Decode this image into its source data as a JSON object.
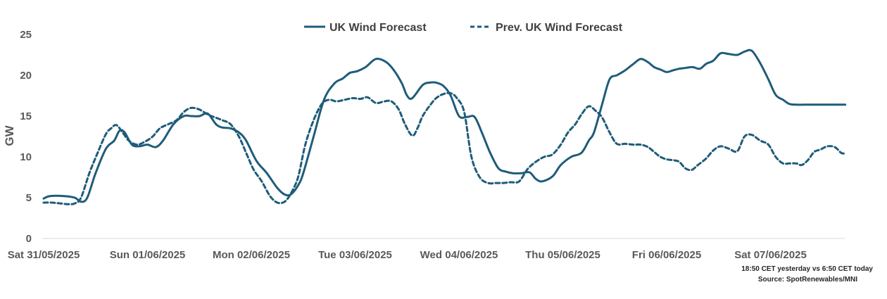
{
  "chart_data": {
    "type": "line",
    "title": "",
    "xlabel": "",
    "ylabel": "GW",
    "ylim": [
      0,
      25
    ],
    "yticks": [
      0,
      5,
      10,
      15,
      20,
      25
    ],
    "xlim": [
      0,
      7.75
    ],
    "x_ticks": [
      0,
      1,
      2,
      3,
      4,
      5,
      6,
      7
    ],
    "x_tick_labels": [
      "Sat 31/05/2025",
      "Sun 01/06/2025",
      "Mon 02/06/2025",
      "Tue 03/06/2025",
      "Wed 04/06/2025",
      "Thu 05/06/2025",
      "Fri 06/06/2025",
      "Sat 07/06/2025"
    ],
    "grid": false,
    "legend_position": "top-center",
    "series": [
      {
        "name": "UK Wind Forecast",
        "style": "solid",
        "color": "#1f5c7a",
        "x": [
          0,
          0.06,
          0.2,
          0.3,
          0.36,
          0.42,
          0.5,
          0.6,
          0.68,
          0.73,
          0.78,
          0.85,
          0.92,
          1.0,
          1.08,
          1.15,
          1.25,
          1.35,
          1.42,
          1.5,
          1.58,
          1.66,
          1.72,
          1.8,
          1.88,
          1.95,
          2.05,
          2.15,
          2.25,
          2.32,
          2.38,
          2.45,
          2.5,
          2.6,
          2.7,
          2.8,
          2.88,
          2.95,
          3.02,
          3.1,
          3.2,
          3.3,
          3.38,
          3.45,
          3.5,
          3.55,
          3.65,
          3.72,
          3.78,
          3.85,
          3.92,
          4.0,
          4.08,
          4.15,
          4.22,
          4.3,
          4.38,
          4.45,
          4.52,
          4.6,
          4.68,
          4.74,
          4.8,
          4.9,
          4.98,
          5.08,
          5.18,
          5.25,
          5.3,
          5.38,
          5.45,
          5.52,
          5.6,
          5.68,
          5.75,
          5.82,
          5.88,
          5.94,
          6.0,
          6.06,
          6.12,
          6.18,
          6.25,
          6.32,
          6.38,
          6.45,
          6.52,
          6.6,
          6.68,
          6.75,
          6.82,
          6.9,
          6.98,
          7.05,
          7.12,
          7.18,
          7.25,
          7.32,
          7.38,
          7.45,
          7.52,
          7.58,
          7.65,
          7.72
        ],
        "y": [
          4.9,
          5.2,
          5.2,
          5.0,
          4.5,
          5.0,
          8.0,
          11.0,
          12.0,
          13.2,
          13.0,
          11.5,
          11.3,
          11.5,
          11.2,
          12.0,
          14.0,
          15.0,
          15.0,
          15.0,
          15.3,
          14.0,
          13.6,
          13.5,
          13.0,
          12.0,
          9.5,
          8.0,
          6.2,
          5.4,
          5.4,
          6.5,
          8.0,
          12.5,
          17.0,
          19.0,
          19.6,
          20.3,
          20.5,
          21.0,
          22.0,
          21.6,
          20.5,
          19.0,
          17.5,
          17.2,
          18.8,
          19.1,
          19.1,
          18.7,
          17.5,
          15.0,
          14.9,
          14.9,
          13.0,
          10.5,
          8.6,
          8.2,
          8.0,
          8.0,
          8.1,
          7.3,
          7.0,
          7.6,
          9.0,
          10.0,
          10.5,
          12.0,
          13.0,
          16.5,
          19.5,
          20.0,
          20.6,
          21.4,
          22.0,
          21.6,
          21.0,
          20.7,
          20.4,
          20.6,
          20.8,
          20.9,
          21.0,
          20.8,
          21.4,
          21.8,
          22.7,
          22.6,
          22.5,
          22.9,
          23.0,
          21.5,
          19.5,
          17.6,
          17.0,
          16.5,
          16.4,
          16.4,
          16.4,
          16.4,
          16.4,
          16.4,
          16.4,
          16.4
        ],
        "x_end": 7.72
      },
      {
        "name": "Prev. UK Wind Forecast",
        "style": "dashed",
        "color": "#1f5c7a",
        "x": [
          0,
          0.08,
          0.16,
          0.24,
          0.3,
          0.36,
          0.44,
          0.52,
          0.6,
          0.65,
          0.7,
          0.76,
          0.82,
          0.9,
          0.98,
          1.05,
          1.12,
          1.2,
          1.28,
          1.35,
          1.42,
          1.5,
          1.58,
          1.66,
          1.72,
          1.8,
          1.88,
          1.95,
          2.02,
          2.1,
          2.18,
          2.25,
          2.32,
          2.38,
          2.45,
          2.52,
          2.6,
          2.68,
          2.75,
          2.82,
          2.9,
          2.98,
          3.05,
          3.12,
          3.2,
          3.28,
          3.35,
          3.42,
          3.48,
          3.55,
          3.6,
          3.65,
          3.72,
          3.78,
          3.85,
          3.92,
          3.98,
          4.05,
          4.12,
          4.2,
          4.28,
          4.36,
          4.42,
          4.5,
          4.58,
          4.66,
          4.74,
          4.82,
          4.9,
          4.98,
          5.05,
          5.12,
          5.18,
          5.25,
          5.32,
          5.38,
          5.45,
          5.52,
          5.6,
          5.68,
          5.75,
          5.82,
          5.88,
          5.94,
          6.0,
          6.06,
          6.12,
          6.18,
          6.24,
          6.3,
          6.38,
          6.45,
          6.52,
          6.6,
          6.68,
          6.75,
          6.82,
          6.9,
          6.98,
          7.05,
          7.12,
          7.18,
          7.25,
          7.3
        ],
        "y": [
          4.4,
          4.4,
          4.3,
          4.2,
          4.3,
          5.0,
          8.0,
          10.5,
          12.8,
          13.5,
          13.9,
          13.0,
          12.0,
          11.5,
          11.9,
          12.5,
          13.5,
          14.0,
          14.5,
          15.5,
          16.0,
          15.8,
          15.2,
          14.8,
          14.5,
          14.0,
          12.5,
          10.5,
          8.5,
          7.0,
          5.2,
          4.4,
          4.5,
          5.5,
          7.5,
          11.5,
          14.5,
          16.5,
          17.0,
          16.8,
          17.0,
          17.2,
          17.1,
          17.3,
          16.6,
          16.8,
          16.8,
          15.8,
          14.0,
          12.6,
          13.5,
          15.0,
          16.3,
          17.2,
          17.7,
          17.8,
          17.2,
          15.5,
          10.0,
          7.5,
          6.8,
          6.8,
          6.8,
          6.9,
          7.0,
          8.5,
          9.4,
          10.0,
          10.3,
          11.5,
          13.0,
          14.0,
          15.2,
          16.2,
          15.6,
          14.8,
          13.0,
          11.6,
          11.6,
          11.5,
          11.5,
          11.2,
          10.6,
          10.0,
          9.7,
          9.6,
          9.4,
          8.6,
          8.4,
          9.0,
          9.8,
          10.8,
          11.3,
          11.0,
          10.7,
          12.5,
          12.7,
          12.0,
          11.5,
          10.0,
          9.2,
          9.2,
          9.2,
          9.0
        ],
        "x_tail": [
          7.36,
          7.42,
          7.48,
          7.55,
          7.62,
          7.68,
          7.72
        ],
        "y_tail": [
          9.6,
          10.6,
          10.9,
          11.3,
          11.2,
          10.5,
          10.4
        ]
      }
    ],
    "annotations": [
      "18:50 CET yesterday vs  6:50 CET today",
      "Source: SpotRenewables/MNI"
    ]
  },
  "legend": {
    "solid_label": "UK Wind Forecast",
    "dashed_label": "Prev. UK Wind Forecast"
  }
}
